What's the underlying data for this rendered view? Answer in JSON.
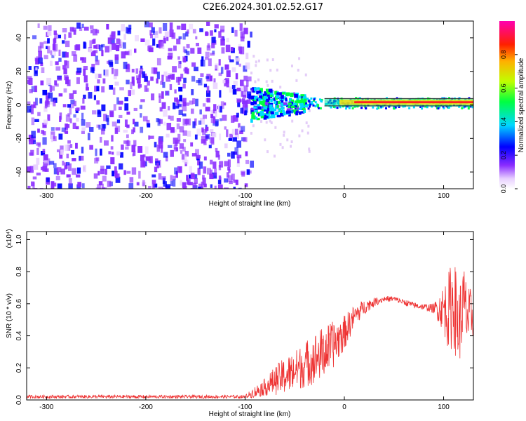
{
  "title": "C2E6.2024.301.02.52.G17",
  "colors": {
    "snr_line": "#ee3333",
    "spectrum_dense": "#6a0ee0",
    "spectrum_light": "#d8b8f5",
    "frame": "#000000"
  },
  "chart_data": [
    {
      "type": "heatmap",
      "title": "C2E6.2024.301.02.52.G17",
      "xlabel": "Height of straight line (km)",
      "ylabel": "Frequency (Hz)",
      "xlim": [
        -320,
        130
      ],
      "ylim": [
        -50,
        50
      ],
      "x_ticks": [
        -300,
        -200,
        -100,
        0,
        100
      ],
      "y_ticks": [
        -40,
        -20,
        0,
        20,
        40
      ],
      "zlabel": "Normalized spectral amplitude",
      "zlim": [
        0,
        1
      ],
      "colorbar_ticks": [
        "0.0",
        "0.2",
        "0.4",
        "0.6",
        "0.8"
      ],
      "colormap": [
        "#ffffff",
        "#e0c8ff",
        "#6a00ff",
        "#0000ff",
        "#00e0ff",
        "#00ff00",
        "#ffff00",
        "#ff0000",
        "#ff00c0"
      ],
      "regions": [
        {
          "name": "noise",
          "x": [
            -320,
            -95
          ],
          "y": [
            -50,
            50
          ],
          "amplitude": [
            0.0,
            0.15
          ]
        },
        {
          "name": "signal-onset",
          "x": [
            -95,
            -40
          ],
          "y": [
            -10,
            10
          ],
          "amplitude": [
            0.1,
            0.5
          ]
        },
        {
          "name": "signal-band",
          "x": [
            -40,
            130
          ],
          "y": [
            -2,
            5
          ],
          "amplitude": [
            0.5,
            1.0
          ]
        }
      ],
      "signal_center_hz": 1.5
    },
    {
      "type": "line",
      "xlabel": "Height of straight line (km)",
      "ylabel": "SNR (10 * v/v)",
      "y_multiplier": "(x10⁴)",
      "xlim": [
        -320,
        130
      ],
      "ylim": [
        0,
        1.05
      ],
      "x_ticks": [
        -300,
        -200,
        -100,
        0,
        100
      ],
      "y_ticks": [
        "0.0",
        "0.2",
        "0.4",
        "0.6",
        "0.8",
        "1.0"
      ],
      "series": [
        {
          "x": [
            -320,
            -250,
            -200,
            -150,
            -100,
            -90,
            -80,
            -70,
            -60,
            -50,
            -40,
            -30,
            -20,
            -10,
            0,
            10,
            20,
            30,
            40,
            50,
            60,
            70,
            80,
            90,
            100,
            105,
            110,
            115,
            120,
            125,
            130
          ],
          "y": [
            0.02,
            0.02,
            0.02,
            0.02,
            0.02,
            0.05,
            0.08,
            0.12,
            0.15,
            0.18,
            0.22,
            0.26,
            0.3,
            0.35,
            0.42,
            0.52,
            0.58,
            0.61,
            0.63,
            0.63,
            0.61,
            0.59,
            0.58,
            0.57,
            0.57,
            0.55,
            0.62,
            0.45,
            0.6,
            0.5,
            0.55
          ],
          "noise_amplitude": [
            0.01,
            0.01,
            0.01,
            0.01,
            0.01,
            0.04,
            0.06,
            0.1,
            0.13,
            0.14,
            0.16,
            0.18,
            0.18,
            0.16,
            0.12,
            0.08,
            0.05,
            0.03,
            0.02,
            0.02,
            0.02,
            0.02,
            0.02,
            0.03,
            0.15,
            0.25,
            0.3,
            0.25,
            0.25,
            0.2,
            0.15
          ]
        }
      ]
    }
  ]
}
